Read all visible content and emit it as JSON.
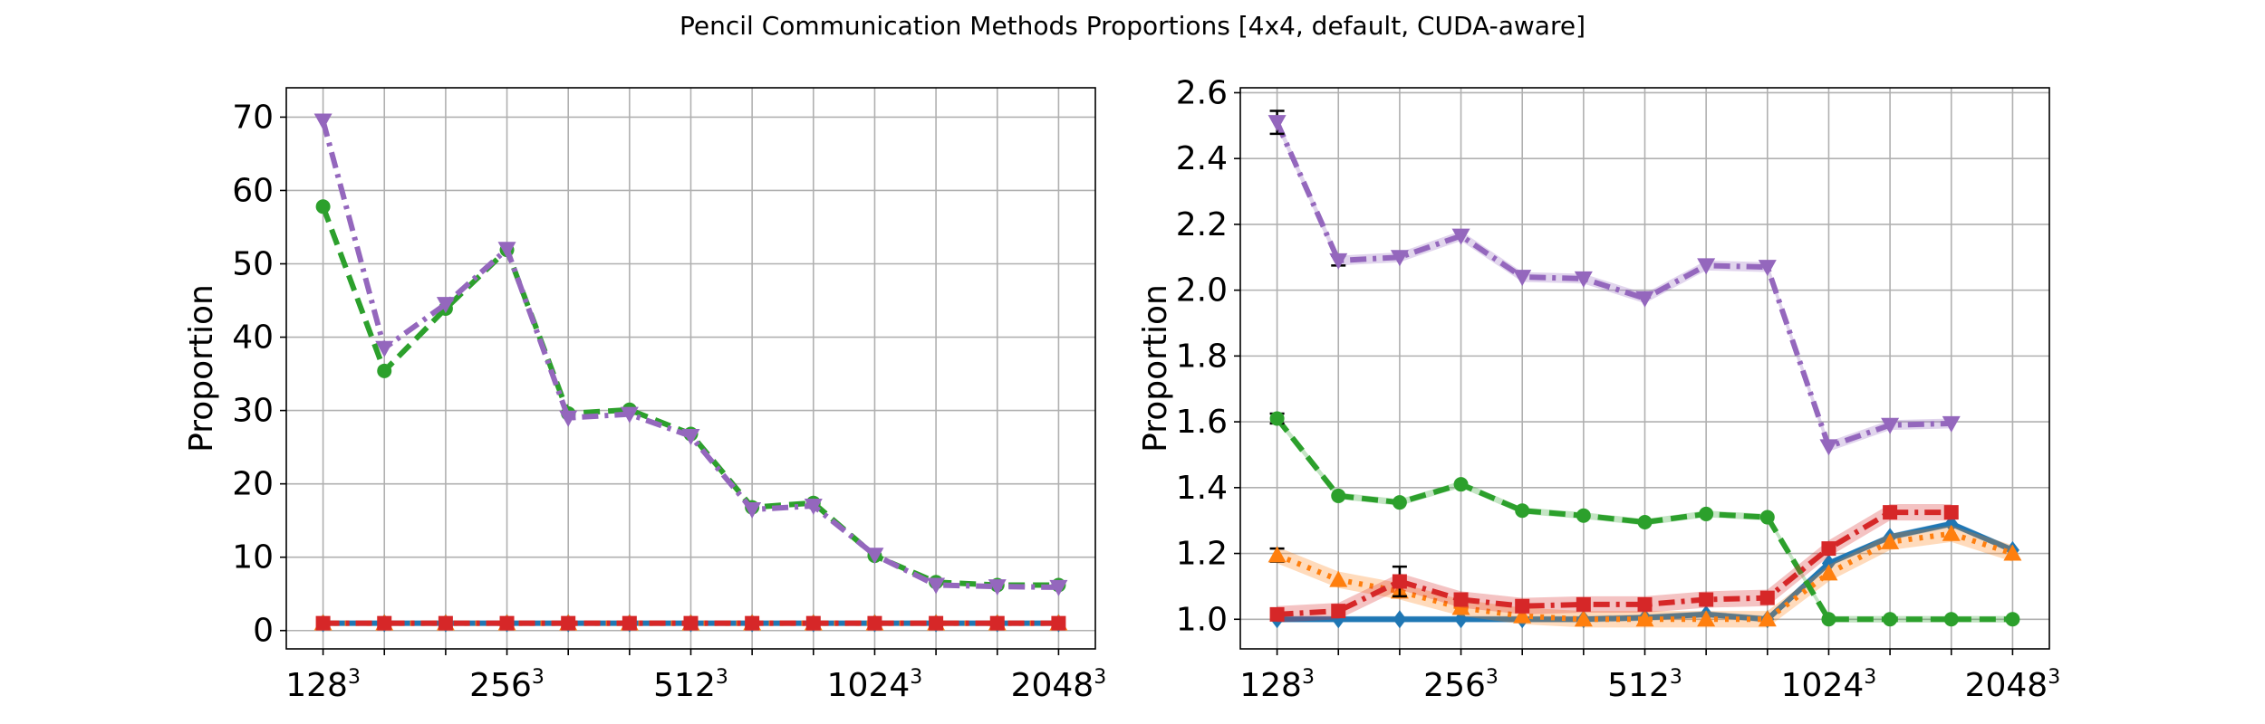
{
  "figure": {
    "title": "Pencil Communication Methods Proportions [4x4, default, CUDA-aware]"
  },
  "chart_data": [
    {
      "type": "line",
      "ylabel": "Proportion",
      "xlabel": "",
      "ylim": [
        -2.5,
        74
      ],
      "xlim": [
        -0.6,
        12.6
      ],
      "grid": true,
      "xticks": [
        {
          "pos": 0,
          "base": "128",
          "exp": "3"
        },
        {
          "pos": 3,
          "base": "256",
          "exp": "3"
        },
        {
          "pos": 6,
          "base": "512",
          "exp": "3"
        },
        {
          "pos": 9,
          "base": "1024",
          "exp": "3"
        },
        {
          "pos": 12,
          "base": "2048",
          "exp": "3"
        }
      ],
      "yticks": [
        0,
        10,
        20,
        30,
        40,
        50,
        60,
        70
      ],
      "x": [
        0,
        1,
        2,
        3,
        4,
        5,
        6,
        7,
        8,
        9,
        10,
        11,
        12
      ],
      "series": [
        {
          "color": "#1f77b4",
          "style": "solid",
          "marker": "diamond",
          "values": [
            1,
            1,
            1,
            1,
            1,
            1,
            1,
            1,
            1,
            1,
            1,
            1,
            1
          ]
        },
        {
          "color": "#ff7f0e",
          "style": "dotted",
          "marker": "triangle-up",
          "values": [
            1,
            1,
            1,
            1,
            1,
            1,
            1,
            1,
            1,
            1,
            1,
            1,
            1
          ]
        },
        {
          "color": "#2ca02c",
          "style": "dashed",
          "marker": "circle",
          "values": [
            57.8,
            35.4,
            43.9,
            51.9,
            29.6,
            30.1,
            26.8,
            16.8,
            17.4,
            10.2,
            6.6,
            6.2,
            6.2
          ]
        },
        {
          "color": "#d62728",
          "style": "dashdot",
          "marker": "square",
          "values": [
            1,
            1,
            1,
            1,
            1,
            1,
            1,
            1,
            1,
            1,
            1,
            1,
            1
          ]
        },
        {
          "color": "#9467bd",
          "style": "dashdot",
          "marker": "triangle-down",
          "values": [
            69.5,
            38.5,
            44.5,
            52.0,
            29.0,
            29.5,
            26.5,
            16.5,
            17.0,
            10.3,
            6.2,
            6.0,
            5.9
          ]
        }
      ]
    },
    {
      "type": "line",
      "ylabel": "Proportion",
      "xlabel": "",
      "ylim": [
        0.91,
        2.615
      ],
      "xlim": [
        -0.6,
        12.6
      ],
      "grid": true,
      "xticks": [
        {
          "pos": 0,
          "base": "128",
          "exp": "3"
        },
        {
          "pos": 3,
          "base": "256",
          "exp": "3"
        },
        {
          "pos": 6,
          "base": "512",
          "exp": "3"
        },
        {
          "pos": 9,
          "base": "1024",
          "exp": "3"
        },
        {
          "pos": 12,
          "base": "2048",
          "exp": "3"
        }
      ],
      "yticks": [
        1.0,
        1.2,
        1.4,
        1.6,
        1.8,
        2.0,
        2.2,
        2.4,
        2.6
      ],
      "x": [
        0,
        1,
        2,
        3,
        4,
        5,
        6,
        7,
        8,
        9,
        10,
        11,
        12
      ],
      "series": [
        {
          "color": "#1f77b4",
          "style": "solid",
          "marker": "diamond",
          "values": [
            1.0,
            1.0,
            1.0,
            1.0,
            1.0,
            1.0,
            1.005,
            1.015,
            1.0,
            1.17,
            1.25,
            1.29,
            1.21
          ],
          "band": 0.01
        },
        {
          "color": "#ff7f0e",
          "style": "dotted",
          "marker": "triangle-up",
          "values": [
            1.195,
            1.12,
            1.085,
            1.035,
            1.01,
            1.0,
            1.0,
            1.0,
            1.0,
            1.14,
            1.235,
            1.26,
            1.2
          ],
          "band": 0.025,
          "errbar": [
            0.02,
            0,
            0,
            0,
            0,
            0,
            0,
            0,
            0,
            0,
            0,
            0,
            0
          ]
        },
        {
          "color": "#2ca02c",
          "style": "dashed",
          "marker": "circle",
          "values": [
            1.61,
            1.375,
            1.355,
            1.41,
            1.33,
            1.315,
            1.295,
            1.32,
            1.31,
            1.0,
            1.0,
            1.0,
            1.0
          ],
          "band": 0.01,
          "errbar": [
            0.015,
            0,
            0,
            0,
            0,
            0,
            0,
            0,
            0,
            0,
            0,
            0,
            0
          ]
        },
        {
          "color": "#d62728",
          "style": "dashdot",
          "marker": "square",
          "values": [
            1.015,
            1.025,
            1.115,
            1.06,
            1.04,
            1.045,
            1.045,
            1.06,
            1.065,
            1.215,
            1.325,
            1.325,
            null
          ],
          "band": 0.025,
          "errbar": [
            0,
            0,
            0.045,
            0,
            0,
            0,
            0,
            0,
            0,
            0,
            0,
            0,
            0
          ]
        },
        {
          "color": "#9467bd",
          "style": "dashdot",
          "marker": "triangle-down",
          "values": [
            2.51,
            2.09,
            2.1,
            2.165,
            2.04,
            2.035,
            1.975,
            2.075,
            2.07,
            1.525,
            1.59,
            1.595,
            null
          ],
          "band": 0.015,
          "errbar": [
            0.035,
            0.015,
            0,
            0,
            0,
            0,
            0,
            0,
            0,
            0,
            0,
            0,
            0
          ]
        }
      ]
    }
  ]
}
